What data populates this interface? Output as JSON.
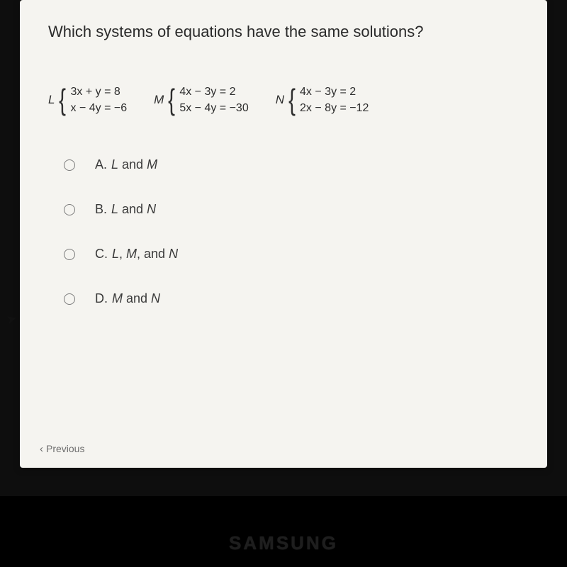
{
  "question": "Which systems of equations have the same solutions?",
  "systems": [
    {
      "label": "L",
      "eq1": "3x + y = 8",
      "eq2": "x − 4y = −6"
    },
    {
      "label": "M",
      "eq1": "4x − 3y = 2",
      "eq2": "5x − 4y = −30"
    },
    {
      "label": "N",
      "eq1": "4x − 3y = 2",
      "eq2": "2x − 8y = −12"
    }
  ],
  "options": {
    "a": {
      "letter": "A.",
      "text_html": "<span class=\"ital\">L</span> and <span class=\"ital\">M</span>"
    },
    "b": {
      "letter": "B.",
      "text_html": "<span class=\"ital\">L</span> and <span class=\"ital\">N</span>"
    },
    "c": {
      "letter": "C.",
      "text_html": "<span class=\"ital\">L</span>, <span class=\"ital\">M</span>, and <span class=\"ital\">N</span>"
    },
    "d": {
      "letter": "D.",
      "text_html": "<span class=\"ital\">M</span> and <span class=\"ital\">N</span>"
    }
  },
  "nav": {
    "previous": "Previous"
  },
  "brand": "SAMSUNG",
  "colors": {
    "card_bg": "#f5f4f0",
    "page_bg": "#0e0e0e",
    "text": "#2e2e2e",
    "muted": "#6d6d6d",
    "radio_border": "#7b7b7b"
  }
}
